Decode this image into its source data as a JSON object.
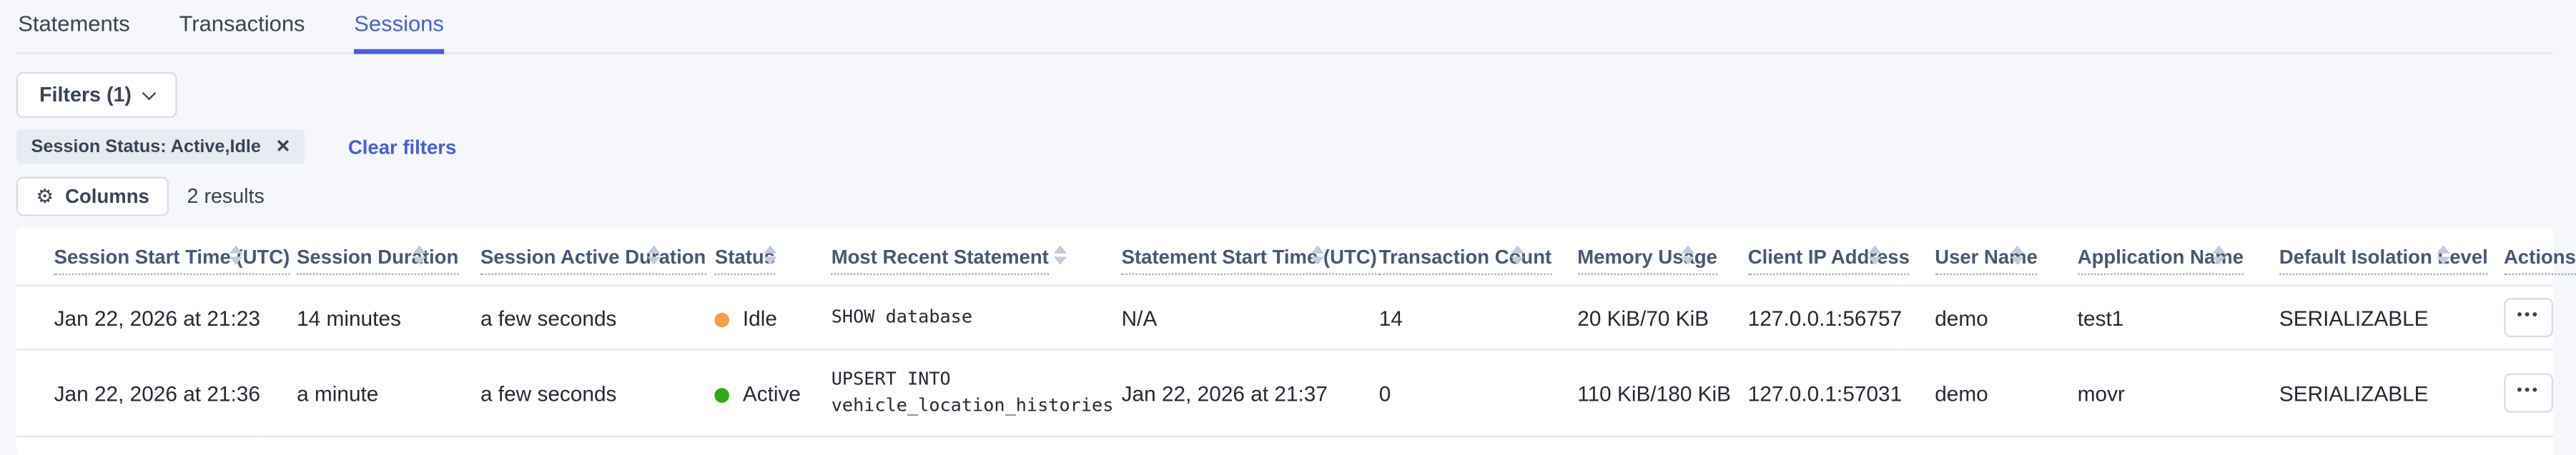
{
  "tabs": [
    {
      "label": "Statements",
      "active": false
    },
    {
      "label": "Transactions",
      "active": false
    },
    {
      "label": "Sessions",
      "active": true
    }
  ],
  "filters": {
    "button_label": "Filters (1)",
    "chip_label": "Session Status: Active,Idle",
    "clear_label": "Clear filters"
  },
  "toolbar": {
    "columns_label": "Columns",
    "results_label": "2 results"
  },
  "colors": {
    "accent": "#4a5ce4",
    "idle_dot": "#f0a14b",
    "active_dot": "#2faa17",
    "page_bg": "#f5f7fa"
  },
  "table": {
    "columns": [
      {
        "label": "Session Start Time (UTC)",
        "sortable": true
      },
      {
        "label": "Session Duration",
        "sortable": true
      },
      {
        "label": "Session Active Duration",
        "sortable": true
      },
      {
        "label": "Status",
        "sortable": true
      },
      {
        "label": "Most Recent Statement",
        "sortable": true
      },
      {
        "label": "Statement Start Time (UTC)",
        "sortable": true
      },
      {
        "label": "Transaction Count",
        "sortable": true
      },
      {
        "label": "Memory Usage",
        "sortable": true
      },
      {
        "label": "Client IP Address",
        "sortable": true
      },
      {
        "label": "User Name",
        "sortable": true
      },
      {
        "label": "Application Name",
        "sortable": true
      },
      {
        "label": "Default Isolation Level",
        "sortable": true
      },
      {
        "label": "Actions",
        "sortable": false
      }
    ],
    "rows": [
      {
        "session_start": "Jan 22, 2026 at 21:23",
        "session_duration": "14 minutes",
        "session_active_duration": "a few seconds",
        "status": "Idle",
        "status_color": "#f0a14b",
        "statement_lines": [
          "SHOW database"
        ],
        "statement_start": "N/A",
        "transaction_count": "14",
        "memory_usage": "20 KiB/70 KiB",
        "client_ip": "127.0.0.1:56757",
        "user_name": "demo",
        "application_name": "test1",
        "isolation_level": "SERIALIZABLE",
        "actions_label": "•••"
      },
      {
        "session_start": "Jan 22, 2026 at 21:36",
        "session_duration": "a minute",
        "session_active_duration": "a few seconds",
        "status": "Active",
        "status_color": "#2faa17",
        "statement_lines": [
          "UPSERT INTO",
          "vehicle_location_histories"
        ],
        "statement_start": "Jan 22, 2026 at 21:37",
        "transaction_count": "0",
        "memory_usage": "110 KiB/180 KiB",
        "client_ip": "127.0.0.1:57031",
        "user_name": "demo",
        "application_name": "movr",
        "isolation_level": "SERIALIZABLE",
        "actions_label": "•••"
      }
    ]
  }
}
